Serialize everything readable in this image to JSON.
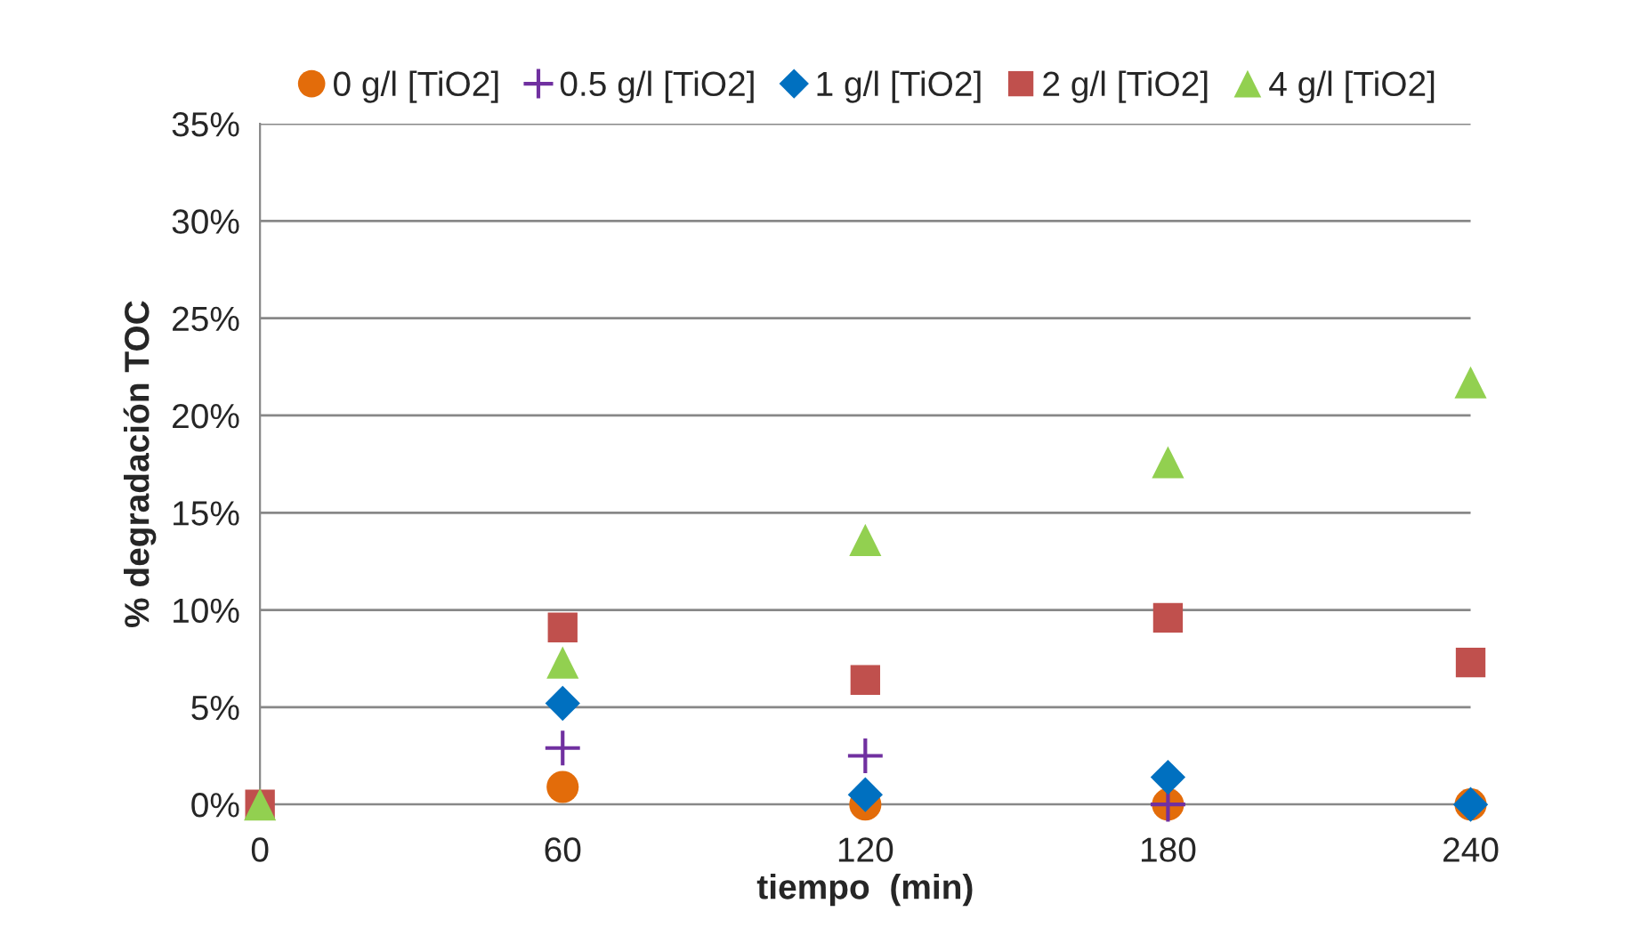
{
  "chart_data": {
    "type": "scatter",
    "xlabel": "tiempo  (min)",
    "ylabel": "% degradación TOC",
    "x": [
      0,
      60,
      120,
      180,
      240
    ],
    "series": [
      {
        "name": "0 g/l [TiO2]",
        "color": "#e36c0a",
        "marker": "circle",
        "values": [
          null,
          0.9,
          0,
          0,
          0
        ]
      },
      {
        "name": "0.5 g/l [TiO2]",
        "color": "#7030a0",
        "marker": "cross",
        "values": [
          null,
          2.9,
          2.5,
          0,
          null
        ]
      },
      {
        "name": "1 g/l [TiO2]",
        "color": "#0070c0",
        "marker": "diamond",
        "values": [
          null,
          5.2,
          0.5,
          1.4,
          0
        ]
      },
      {
        "name": "2 g/l [TiO2]",
        "color": "#c0504d",
        "marker": "square",
        "values": [
          0,
          9.1,
          6.4,
          9.6,
          7.3
        ]
      },
      {
        "name": "4 g/l [TiO2]",
        "color": "#92d050",
        "marker": "triangle",
        "values": [
          0,
          7.3,
          13.6,
          17.6,
          21.7
        ]
      }
    ],
    "xlim": [
      0,
      240
    ],
    "xticks": [
      0,
      60,
      120,
      180,
      240
    ],
    "ylim": [
      0,
      35
    ],
    "yticks": [
      {
        "value": 0,
        "label": "0%"
      },
      {
        "value": 5,
        "label": "5%"
      },
      {
        "value": 10,
        "label": "10%"
      },
      {
        "value": 15,
        "label": "15%"
      },
      {
        "value": 20,
        "label": "20%"
      },
      {
        "value": 25,
        "label": "25%"
      },
      {
        "value": 30,
        "label": "30%"
      },
      {
        "value": 35,
        "label": "35%"
      }
    ],
    "grid": "y",
    "legend": "top"
  }
}
